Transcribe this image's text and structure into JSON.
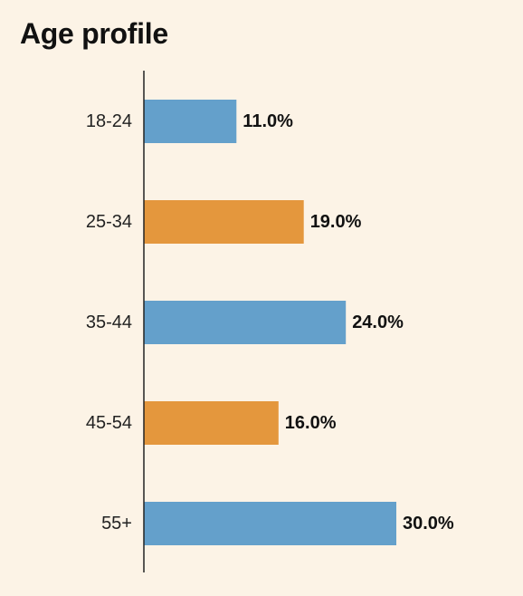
{
  "chart_data": {
    "type": "bar",
    "orientation": "horizontal",
    "title": "Age profile",
    "xlabel": "",
    "ylabel": "",
    "categories": [
      "18-24",
      "25-34",
      "35-44",
      "45-54",
      "55+"
    ],
    "values": [
      11.0,
      19.0,
      24.0,
      16.0,
      30.0
    ],
    "data_labels": [
      "11.0%",
      "19.0%",
      "24.0%",
      "16.0%",
      "30.0%"
    ],
    "unit": "%",
    "xlim": [
      0,
      30
    ],
    "grid": false,
    "legend": "none",
    "bar_colors": [
      "#64a0cb",
      "#e4973d",
      "#64a0cb",
      "#e4973d",
      "#64a0cb"
    ]
  },
  "colors": {
    "background": "#fcf3e6",
    "axis": "#222222",
    "text": "#111111"
  }
}
